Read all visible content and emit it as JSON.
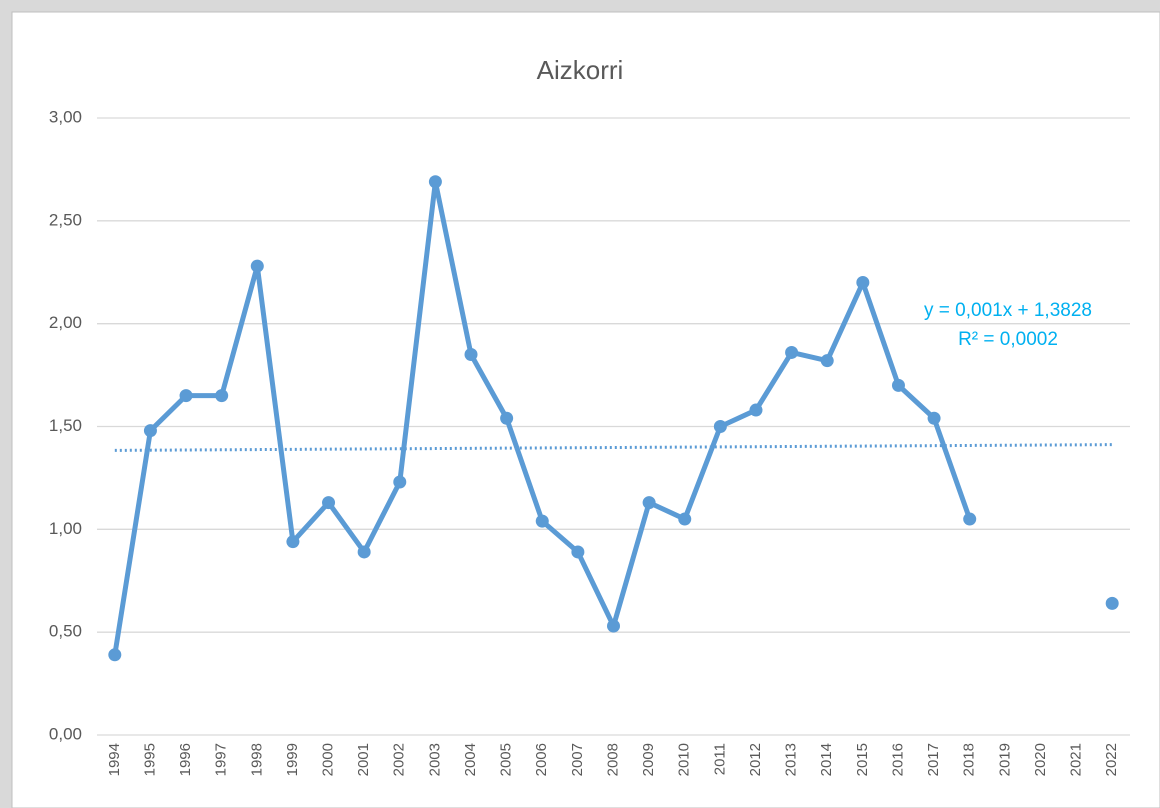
{
  "chart_data": {
    "type": "line",
    "title": "Aizkorri",
    "categories": [
      "1994",
      "1995",
      "1996",
      "1997",
      "1998",
      "1999",
      "2000",
      "2001",
      "2002",
      "2003",
      "2004",
      "2005",
      "2006",
      "2007",
      "2008",
      "2009",
      "2010",
      "2011",
      "2012",
      "2013",
      "2014",
      "2015",
      "2016",
      "2017",
      "2018",
      "2019",
      "2020",
      "2021",
      "2022"
    ],
    "series": [
      {
        "color": "#5b9bd5",
        "values": [
          0.39,
          1.48,
          1.65,
          1.65,
          2.28,
          0.94,
          1.13,
          0.89,
          1.23,
          2.69,
          1.85,
          1.54,
          1.04,
          0.89,
          0.53,
          1.13,
          1.05,
          1.5,
          1.58,
          1.86,
          1.82,
          2.2,
          1.7,
          1.54,
          1.05,
          null,
          null,
          null,
          0.64
        ]
      }
    ],
    "ylim": [
      0,
      3
    ],
    "yticks": [
      {
        "value": 0,
        "label": "0,00"
      },
      {
        "value": 0.5,
        "label": "0,50"
      },
      {
        "value": 1,
        "label": "1,00"
      },
      {
        "value": 1.5,
        "label": "1,50"
      },
      {
        "value": 2,
        "label": "2,00"
      },
      {
        "value": 2.5,
        "label": "2,50"
      },
      {
        "value": 3,
        "label": "3,00"
      }
    ],
    "grid": true,
    "trendline": {
      "slope": 0.001,
      "intercept": 1.3828,
      "color": "#00b0f0",
      "equation": "y = 0,001x + 1,3828",
      "r2": "R² = 0,0002"
    }
  }
}
